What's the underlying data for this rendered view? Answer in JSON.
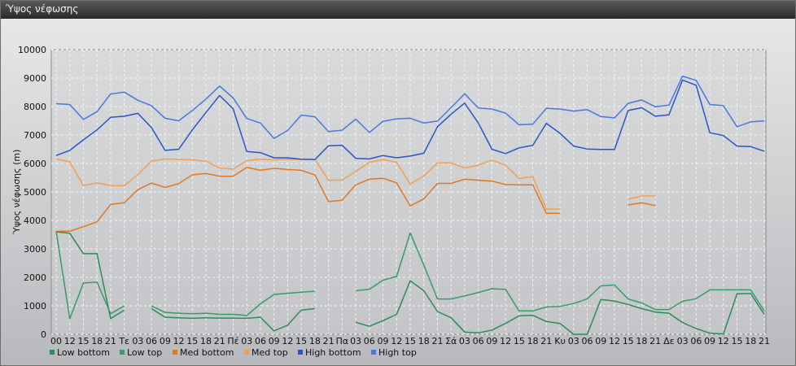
{
  "window": {
    "title": "Ύψος νέφωσης"
  },
  "chart_data": {
    "type": "line",
    "title": "",
    "ylabel": "Ύψος νέφωσης (m)",
    "xlabel": "",
    "ylim": [
      0,
      10000
    ],
    "yticks": [
      0,
      1000,
      2000,
      3000,
      4000,
      5000,
      6000,
      7000,
      8000,
      9000,
      10000
    ],
    "grid": true,
    "legend_position": "bottom",
    "categories": [
      "00",
      "12",
      "15",
      "18",
      "21",
      "Τε",
      "03",
      "06",
      "09",
      "12",
      "15",
      "18",
      "21",
      "Πέ",
      "03",
      "06",
      "09",
      "12",
      "15",
      "18",
      "21",
      "Πα",
      "03",
      "06",
      "09",
      "12",
      "15",
      "18",
      "21",
      "Σά",
      "03",
      "06",
      "09",
      "12",
      "15",
      "18",
      "21",
      "Κυ",
      "03",
      "06",
      "09",
      "12",
      "15",
      "18",
      "21",
      "Δε",
      "03",
      "06",
      "09",
      "12",
      "15",
      "18",
      "21"
    ],
    "series": [
      {
        "name": "Low bottom",
        "color": "#2e8b57",
        "values": [
          3600,
          3550,
          2830,
          2830,
          550,
          850,
          null,
          900,
          600,
          580,
          560,
          580,
          570,
          570,
          560,
          600,
          120,
          320,
          850,
          900,
          null,
          null,
          420,
          280,
          480,
          700,
          1880,
          1530,
          800,
          580,
          80,
          50,
          150,
          380,
          650,
          670,
          450,
          380,
          0,
          0,
          1220,
          1170,
          1050,
          900,
          780,
          740,
          410,
          200,
          40,
          10,
          1420,
          1430,
          700
        ]
      },
      {
        "name": "Low top",
        "color": "#3a9a6a",
        "values": [
          3620,
          550,
          1800,
          1830,
          720,
          1000,
          null,
          1000,
          770,
          740,
          720,
          740,
          700,
          700,
          660,
          1070,
          1400,
          1440,
          1480,
          1510,
          null,
          null,
          1530,
          1580,
          1900,
          2030,
          3560,
          2430,
          1240,
          1240,
          1350,
          1470,
          1600,
          1580,
          820,
          820,
          960,
          980,
          1080,
          1240,
          1700,
          1730,
          1240,
          1100,
          870,
          870,
          1160,
          1250,
          1560,
          1560,
          1560,
          1560,
          820
        ]
      },
      {
        "name": "Med bottom",
        "color": "#e07820",
        "values": [
          3620,
          3620,
          3780,
          3950,
          4560,
          4620,
          5080,
          5310,
          5160,
          5290,
          5600,
          5650,
          5550,
          5550,
          5860,
          5760,
          5830,
          5790,
          5760,
          5600,
          4660,
          4710,
          5250,
          5450,
          5480,
          5320,
          4510,
          4760,
          5300,
          5300,
          5450,
          5410,
          5380,
          5260,
          5250,
          5250,
          4250,
          4250,
          null,
          null,
          null,
          null,
          4540,
          4620,
          4520,
          null,
          null,
          null,
          null,
          null,
          null,
          null,
          null
        ]
      },
      {
        "name": "Med top",
        "color": "#f0a050",
        "values": [
          6160,
          6060,
          5220,
          5320,
          5220,
          5220,
          5610,
          6080,
          6160,
          6140,
          6130,
          6080,
          5840,
          5800,
          6100,
          6150,
          6130,
          6150,
          6140,
          6150,
          5410,
          5420,
          5720,
          6040,
          6140,
          6040,
          5280,
          5560,
          6020,
          6020,
          5840,
          5940,
          6120,
          5940,
          5470,
          5540,
          4400,
          4400,
          null,
          null,
          null,
          null,
          4740,
          4860,
          4860,
          null,
          null,
          null,
          null,
          null,
          null,
          null,
          null
        ]
      },
      {
        "name": "High bottom",
        "color": "#2a55c8",
        "values": [
          6280,
          6460,
          6830,
          7180,
          7620,
          7660,
          7760,
          7260,
          6460,
          6500,
          7180,
          7790,
          8390,
          7920,
          6420,
          6380,
          6200,
          6200,
          6150,
          6140,
          6620,
          6640,
          6180,
          6160,
          6280,
          6200,
          6260,
          6360,
          7290,
          7730,
          8120,
          7420,
          6500,
          6350,
          6550,
          6640,
          7410,
          7060,
          6610,
          6510,
          6490,
          6490,
          7860,
          7960,
          7660,
          7710,
          8930,
          8750,
          7080,
          6980,
          6610,
          6590,
          6430
        ]
      },
      {
        "name": "High top",
        "color": "#4a78e0",
        "values": [
          8100,
          8070,
          7550,
          7820,
          8440,
          8510,
          8220,
          8030,
          7590,
          7500,
          7860,
          8260,
          8720,
          8300,
          7580,
          7420,
          6880,
          7160,
          7700,
          7640,
          7120,
          7170,
          7560,
          7090,
          7480,
          7570,
          7590,
          7420,
          7490,
          7960,
          8450,
          7950,
          7910,
          7770,
          7360,
          7380,
          7940,
          7910,
          7840,
          7890,
          7650,
          7600,
          8110,
          8230,
          7990,
          8050,
          9070,
          8920,
          8070,
          8030,
          7290,
          7460,
          7500
        ]
      }
    ]
  }
}
